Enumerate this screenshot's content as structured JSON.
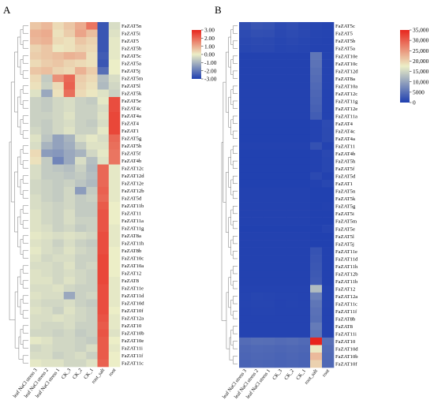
{
  "panels": {
    "a": {
      "label": "A"
    },
    "b": {
      "label": "B"
    }
  },
  "colors": {
    "heat_low": "#1f3fb0",
    "heat_mid": "#eceec7",
    "heat_high": "#e8251d",
    "dendrogram": "#8c8c8c",
    "missing": "#ffffff"
  },
  "chart_data": [
    {
      "id": "A",
      "type": "heatmap",
      "title": "",
      "subtitle": "",
      "colorbar": {
        "ticks": [
          "3.00",
          "2.00",
          "1.00",
          "0.00",
          "-1.00",
          "-2.00",
          "-3.00"
        ],
        "range": [
          -3,
          3
        ],
        "position": "top-right"
      },
      "columns": [
        "leaf NaCl stress 3",
        "leaf NaCl stress 2",
        "leaf NaCl stress 1",
        "CK_3",
        "CK_2",
        "CK_1",
        "root_salt",
        "root"
      ],
      "rows": [
        "FaZAT5n",
        "FaZAT5i",
        "FaZAT5",
        "FaZAT5b",
        "FaZAT5c",
        "FaZAT5a",
        "FaZAT5j",
        "FaZAT5m",
        "FaZAT5l",
        "FaZAT5k",
        "FaZAT5e",
        "FaZAT4c",
        "FaZAT4a",
        "FaZAT4",
        "FaZAT1",
        "FaZAT5g",
        "FaZAT5h",
        "FaZAT5f",
        "FaZAT4b",
        "FaZAT12c",
        "FaZAT12d",
        "FaZAT12e",
        "FaZAT12b",
        "FaZAT5d",
        "FaZAT11b",
        "FaZAT11",
        "FaZAT11a",
        "FaZAT11g",
        "FaZAT8a",
        "FaZAT11h",
        "FaZAT8b",
        "FaZAT10c",
        "FaZAT10a",
        "FaZAT12",
        "FaZAT8",
        "FaZAT11e",
        "FaZAT11d",
        "FaZAT10d",
        "FaZAT10f",
        "FaZAT12a",
        "FaZAT10",
        "FaZAT10b",
        "FaZAT10e",
        "FaZAT11i",
        "FaZAT11f",
        "FaZAT11c"
      ],
      "values": [
        [
          0.6,
          0.8,
          0.3,
          0.6,
          1.0,
          1.8,
          -2.6,
          -0.3
        ],
        [
          0.9,
          1.0,
          0.2,
          0.5,
          1.1,
          0.7,
          -2.6,
          -0.2
        ],
        [
          0.8,
          0.9,
          0.3,
          0.2,
          0.6,
          0.4,
          -2.6,
          -0.1
        ],
        [
          0.4,
          0.6,
          0.1,
          0.2,
          0.4,
          0.3,
          -2.6,
          -0.1
        ],
        [
          0.5,
          0.6,
          0.7,
          0.9,
          0.8,
          0.2,
          -2.5,
          -0.1
        ],
        [
          0.3,
          0.5,
          0.6,
          0.4,
          0.3,
          0.2,
          -2.6,
          0.0
        ],
        [
          0.6,
          0.7,
          0.4,
          0.3,
          0.9,
          0.5,
          -2.2,
          0.0
        ],
        [
          0.3,
          -0.6,
          1.4,
          2.0,
          0.5,
          0.3,
          -0.8,
          -0.3
        ],
        [
          0.2,
          -0.5,
          0.3,
          2.1,
          0.4,
          0.2,
          -0.9,
          -0.4
        ],
        [
          -0.2,
          -1.2,
          0.2,
          1.9,
          0.3,
          0.1,
          -0.2,
          -0.5
        ],
        [
          -0.5,
          -0.6,
          -0.4,
          -0.3,
          -0.5,
          -0.6,
          -0.1,
          2.4
        ],
        [
          -0.5,
          -0.6,
          -0.4,
          -0.3,
          -0.5,
          -0.5,
          -0.3,
          2.4
        ],
        [
          -0.5,
          -0.5,
          -0.4,
          -0.2,
          -0.5,
          -0.5,
          -0.2,
          2.5
        ],
        [
          -0.5,
          -0.6,
          -0.4,
          -0.3,
          -0.5,
          -0.6,
          -0.3,
          2.5
        ],
        [
          -0.4,
          -0.6,
          -0.4,
          -0.2,
          -0.5,
          -0.5,
          -0.1,
          2.5
        ],
        [
          -0.2,
          -0.7,
          -1.3,
          -1.0,
          -0.3,
          -0.1,
          -0.3,
          2.0
        ],
        [
          -0.3,
          -1.0,
          -1.3,
          -1.1,
          -0.6,
          -0.2,
          -0.2,
          1.9
        ],
        [
          0.3,
          -1.4,
          -1.5,
          -1.2,
          -1.0,
          -0.4,
          -0.1,
          1.8
        ],
        [
          0.2,
          -0.6,
          -1.8,
          -1.2,
          -0.3,
          -0.8,
          -0.2,
          1.8
        ],
        [
          -0.3,
          -0.6,
          -0.7,
          -0.8,
          -0.5,
          -0.9,
          2.0,
          -0.1
        ],
        [
          -0.3,
          -0.6,
          -0.6,
          -0.7,
          -0.6,
          -0.8,
          2.0,
          -0.1
        ],
        [
          -0.4,
          -0.5,
          -0.6,
          -0.5,
          -0.7,
          -0.9,
          2.0,
          -0.1
        ],
        [
          -0.4,
          -0.5,
          -0.6,
          -0.4,
          -1.4,
          -0.6,
          2.1,
          -0.1
        ],
        [
          -0.3,
          -0.5,
          -0.6,
          -0.4,
          -0.6,
          -0.5,
          2.0,
          -0.1
        ],
        [
          -0.3,
          -0.4,
          -0.5,
          -0.4,
          -0.6,
          -0.6,
          2.2,
          0.0
        ],
        [
          -0.2,
          -0.4,
          -0.5,
          -0.3,
          -0.6,
          -0.6,
          2.3,
          0.0
        ],
        [
          -0.2,
          -0.4,
          -0.5,
          -0.3,
          -0.5,
          -0.5,
          2.3,
          0.0
        ],
        [
          -0.2,
          -0.3,
          -0.5,
          -0.4,
          -0.6,
          -0.5,
          2.3,
          -0.1
        ],
        [
          -0.1,
          -0.2,
          -0.3,
          -0.2,
          -0.3,
          -0.4,
          2.4,
          -0.1
        ],
        [
          -0.2,
          -0.3,
          -0.5,
          -0.3,
          -0.5,
          -0.6,
          2.4,
          -0.1
        ],
        [
          -0.1,
          -0.3,
          -0.4,
          -0.2,
          -0.4,
          -0.5,
          2.4,
          0.0
        ],
        [
          -0.2,
          -0.4,
          -0.3,
          -0.3,
          -0.5,
          -0.5,
          2.5,
          0.0
        ],
        [
          -0.3,
          -0.3,
          -0.4,
          -0.2,
          -0.5,
          -0.4,
          2.5,
          0.0
        ],
        [
          -0.2,
          -0.3,
          -0.4,
          -0.3,
          -0.4,
          -0.5,
          2.5,
          0.0
        ],
        [
          -0.2,
          -0.2,
          -0.4,
          -0.2,
          -0.4,
          -0.5,
          2.5,
          -0.1
        ],
        [
          -0.3,
          -0.3,
          -0.2,
          -0.4,
          -0.5,
          -0.5,
          2.4,
          -0.1
        ],
        [
          -0.2,
          -0.3,
          -0.3,
          -1.2,
          -0.5,
          -0.4,
          2.4,
          -0.1
        ],
        [
          -0.3,
          -0.4,
          -0.4,
          -0.3,
          -0.5,
          -0.6,
          2.4,
          -0.1
        ],
        [
          -0.2,
          -0.3,
          -0.5,
          -0.2,
          -0.4,
          -0.5,
          2.4,
          0.0
        ],
        [
          -0.3,
          -0.3,
          -0.2,
          -0.3,
          -0.4,
          -0.5,
          2.3,
          -0.1
        ],
        [
          -0.3,
          -0.4,
          -0.4,
          -0.3,
          -0.5,
          -0.5,
          2.2,
          -0.1
        ],
        [
          -0.4,
          -0.4,
          -0.5,
          -0.4,
          -0.6,
          -0.5,
          2.3,
          -0.2
        ],
        [
          -0.1,
          -0.2,
          -0.4,
          -0.4,
          -0.5,
          -0.6,
          2.2,
          0.0
        ],
        [
          -0.4,
          -0.3,
          -0.4,
          -0.4,
          -0.5,
          -0.3,
          2.2,
          -0.1
        ],
        [
          -0.3,
          -0.3,
          -0.5,
          -0.4,
          -0.3,
          -0.5,
          2.2,
          0.0
        ],
        [
          -0.1,
          -0.2,
          -0.2,
          -0.4,
          -0.4,
          -0.2,
          2.1,
          0.0
        ]
      ]
    },
    {
      "id": "B",
      "type": "heatmap",
      "title": "",
      "subtitle": "",
      "colorbar": {
        "ticks": [
          "35,000",
          "30,000",
          "25,000",
          "20,000",
          "15,000",
          "10,000",
          "5000",
          "0"
        ],
        "range": [
          0,
          35000
        ],
        "position": "top-right"
      },
      "columns": [
        "leaf NaCl stress 3",
        "leaf NaCl stress 2",
        "leaf NaCl stress 1",
        "CK_3",
        "CK_2",
        "CK_1",
        "root_salt",
        "root"
      ],
      "rows": [
        "FaZAT5c",
        "FaZAT5",
        "FaZAT5b",
        "FaZAT5a",
        "FaZAT10e",
        "FaZAT10c",
        "FaZAT12d",
        "FaZAT8a",
        "FaZAT10a",
        "FaZAT12c",
        "FaZAT11g",
        "FaZAT12e",
        "FaZAT11a",
        "FaZAT4",
        "FaZAT4c",
        "FaZAT4a",
        "FaZAT11",
        "FaZAT4b",
        "FaZAT5h",
        "FaZAT5f",
        "FaZAT5d",
        "FaZAT1",
        "FaZAT5n",
        "FaZAT5k",
        "FaZAT5g",
        "FaZAT5i",
        "FaZAT5m",
        "FaZAT5e",
        "FaZAT5l",
        "FaZAT5j",
        "FaZAT11e",
        "FaZAT11d",
        "FaZAT11h",
        "FaZAT12b",
        "FaZAT11b",
        "FaZAT12",
        "FaZAT12a",
        "FaZAT11c",
        "FaZAT11f",
        "FaZAT8b",
        "FaZAT8",
        "FaZAT11i",
        "FaZAT10",
        "FaZAT10d",
        "FaZAT10b",
        "FaZAT10f"
      ],
      "values": [
        [
          1500,
          2200,
          2000,
          1200,
          1500,
          1000,
          800,
          600
        ],
        [
          1200,
          1600,
          1500,
          900,
          1200,
          900,
          600,
          500
        ],
        [
          900,
          1100,
          1000,
          700,
          900,
          700,
          500,
          400
        ],
        [
          800,
          900,
          900,
          600,
          700,
          600,
          400,
          400
        ],
        [
          300,
          300,
          300,
          300,
          300,
          300,
          5500,
          500
        ],
        [
          300,
          300,
          300,
          300,
          300,
          300,
          5200,
          500
        ],
        [
          300,
          300,
          300,
          300,
          300,
          300,
          4800,
          500
        ],
        [
          300,
          300,
          300,
          300,
          300,
          300,
          4500,
          500
        ],
        [
          300,
          300,
          300,
          300,
          300,
          300,
          4200,
          500
        ],
        [
          300,
          300,
          300,
          300,
          300,
          300,
          3900,
          400
        ],
        [
          300,
          300,
          300,
          300,
          300,
          300,
          3700,
          400
        ],
        [
          300,
          300,
          300,
          300,
          300,
          300,
          3400,
          400
        ],
        [
          300,
          300,
          300,
          300,
          300,
          300,
          3000,
          400
        ],
        [
          200,
          200,
          200,
          200,
          200,
          200,
          400,
          1200
        ],
        [
          200,
          200,
          200,
          200,
          200,
          200,
          400,
          1100
        ],
        [
          200,
          200,
          200,
          200,
          200,
          200,
          400,
          1100
        ],
        [
          300,
          300,
          300,
          300,
          300,
          300,
          1800,
          400
        ],
        [
          200,
          200,
          200,
          200,
          200,
          200,
          300,
          900
        ],
        [
          200,
          200,
          200,
          200,
          200,
          200,
          300,
          800
        ],
        [
          200,
          200,
          200,
          200,
          200,
          200,
          300,
          800
        ],
        [
          200,
          200,
          200,
          200,
          200,
          200,
          1000,
          300
        ],
        [
          200,
          200,
          200,
          200,
          200,
          200,
          300,
          800
        ],
        [
          300,
          300,
          300,
          300,
          300,
          300,
          200,
          200
        ],
        [
          300,
          300,
          300,
          300,
          300,
          300,
          200,
          200
        ],
        [
          300,
          300,
          300,
          300,
          300,
          300,
          200,
          300
        ],
        [
          300,
          300,
          300,
          300,
          300,
          300,
          200,
          200
        ],
        [
          300,
          300,
          300,
          300,
          300,
          300,
          200,
          200
        ],
        [
          200,
          200,
          200,
          200,
          200,
          200,
          200,
          600
        ],
        [
          300,
          300,
          300,
          300,
          300,
          300,
          200,
          200
        ],
        [
          300,
          300,
          300,
          300,
          300,
          300,
          200,
          200
        ],
        [
          300,
          300,
          300,
          300,
          300,
          300,
          2000,
          300
        ],
        [
          300,
          300,
          300,
          300,
          300,
          300,
          2200,
          300
        ],
        [
          300,
          300,
          300,
          300,
          300,
          300,
          2400,
          300
        ],
        [
          300,
          300,
          300,
          300,
          300,
          300,
          2600,
          300
        ],
        [
          300,
          300,
          300,
          300,
          300,
          300,
          2800,
          300
        ],
        [
          400,
          400,
          400,
          400,
          400,
          400,
          12500,
          500
        ],
        [
          500,
          700,
          600,
          500,
          500,
          400,
          6500,
          500
        ],
        [
          500,
          600,
          600,
          400,
          500,
          400,
          5500,
          500
        ],
        [
          400,
          500,
          500,
          400,
          400,
          400,
          5000,
          400
        ],
        [
          400,
          400,
          400,
          400,
          400,
          400,
          4800,
          400
        ],
        [
          400,
          400,
          400,
          400,
          400,
          400,
          6000,
          400
        ],
        [
          400,
          400,
          400,
          400,
          400,
          400,
          5500,
          400
        ],
        [
          4500,
          4800,
          4700,
          4400,
          4600,
          4300,
          35000,
          5000
        ],
        [
          4000,
          4200,
          4100,
          3900,
          4100,
          3900,
          18000,
          4500
        ],
        [
          3800,
          4000,
          3900,
          3700,
          3900,
          3700,
          22000,
          4300
        ],
        [
          3600,
          3800,
          3700,
          3500,
          3700,
          3500,
          20000,
          4100
        ]
      ]
    }
  ]
}
